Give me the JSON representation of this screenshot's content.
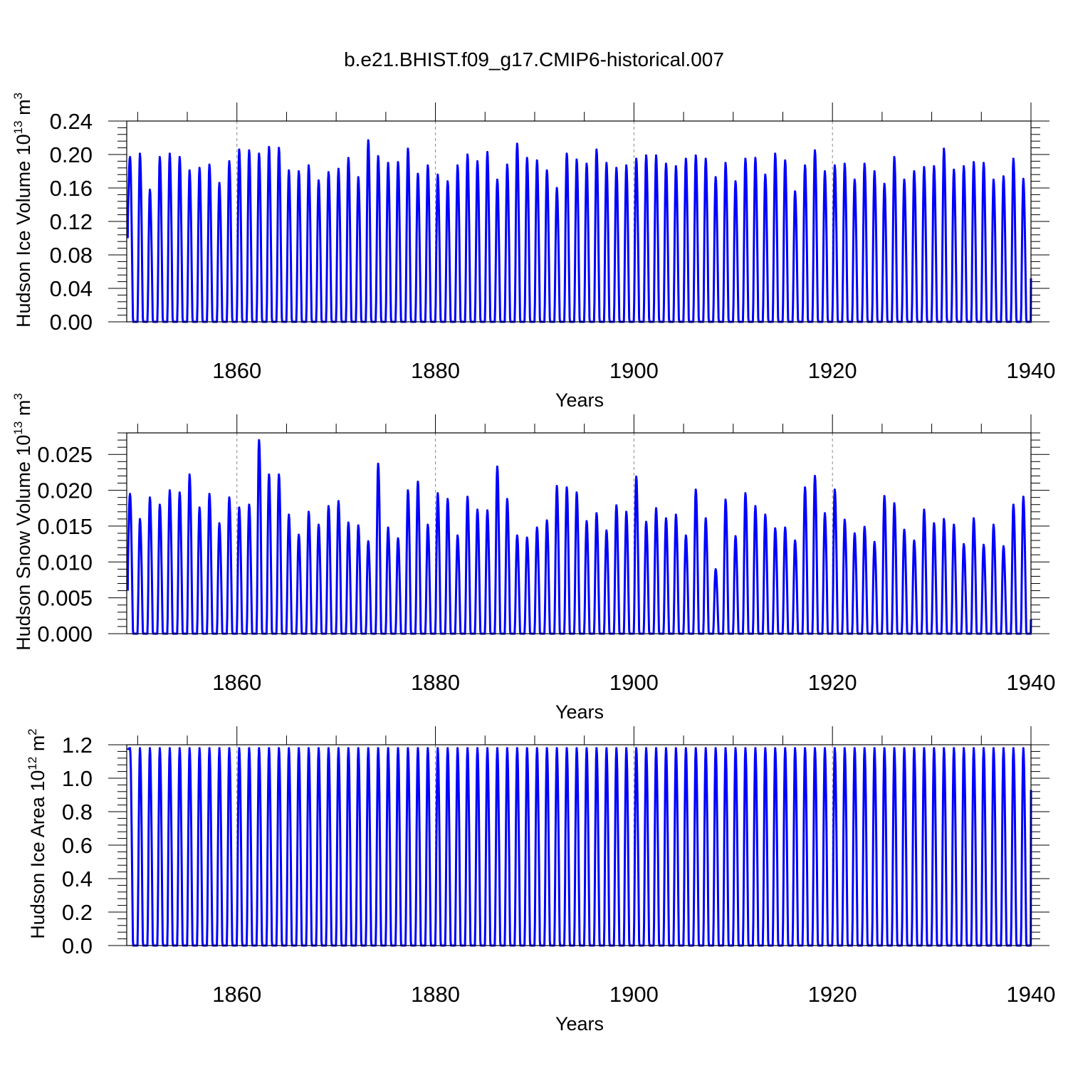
{
  "title": "b.e21.BHIST.f09_g17.CMIP6-historical.007",
  "colors": {
    "line": "#0000ff",
    "axes": "#000000",
    "grid": "#888888"
  },
  "chart_data": [
    {
      "type": "line",
      "ylabel": "Hudson Ice Volume 10",
      "ylabel_sup_exp": "13",
      "ylabel_unit": "m",
      "ylabel_unit_sup": "3",
      "xlabel": "Years",
      "xlim": [
        1848.9,
        1940.0
      ],
      "ylim": [
        0.0,
        0.24
      ],
      "yticks": [
        "0.00",
        "0.04",
        "0.08",
        "0.12",
        "0.16",
        "0.20",
        "0.24"
      ],
      "xticks": [
        "1860",
        "1880",
        "1900",
        "1920",
        "1940"
      ],
      "grid": "vertical dashed at major x ticks",
      "series": [
        {
          "start_year": 1849,
          "annual_max": [
            0.197,
            0.201,
            0.158,
            0.197,
            0.201,
            0.197,
            0.181,
            0.184,
            0.188,
            0.166,
            0.192,
            0.206,
            0.205,
            0.201,
            0.209,
            0.208,
            0.181,
            0.18,
            0.187,
            0.169,
            0.179,
            0.183,
            0.196,
            0.173,
            0.217,
            0.198,
            0.19,
            0.191,
            0.207,
            0.177,
            0.187,
            0.176,
            0.168,
            0.187,
            0.2,
            0.192,
            0.203,
            0.17,
            0.188,
            0.213,
            0.196,
            0.193,
            0.181,
            0.16,
            0.201,
            0.194,
            0.189,
            0.206,
            0.19,
            0.184,
            0.187,
            0.195,
            0.199,
            0.199,
            0.189,
            0.186,
            0.195,
            0.199,
            0.195,
            0.173,
            0.19,
            0.168,
            0.195,
            0.196,
            0.176,
            0.201,
            0.193,
            0.156,
            0.187,
            0.205,
            0.18,
            0.187,
            0.189,
            0.17,
            0.189,
            0.18,
            0.165,
            0.197,
            0.17,
            0.18,
            0.185,
            0.186,
            0.207,
            0.182,
            0.186,
            0.191,
            0.19,
            0.17,
            0.174,
            0.195,
            0.171
          ],
          "annual_min": [
            0.0,
            0.0,
            0.0,
            0.0,
            0.0,
            0.0,
            0.0,
            0.0,
            0.0,
            0.0,
            0.0,
            0.0,
            0.0,
            0.0,
            0.0,
            0.0,
            0.0,
            0.0,
            0.0,
            0.0,
            0.0,
            0.0,
            0.0,
            0.0,
            0.0,
            0.0,
            0.0,
            0.0,
            0.0,
            0.0,
            0.0,
            0.0,
            0.0,
            0.0,
            0.0,
            0.0,
            0.0,
            0.0,
            0.0,
            0.0,
            0.0,
            0.0,
            0.0,
            0.0,
            0.0,
            0.0,
            0.0,
            0.0,
            0.0,
            0.0,
            0.0,
            0.0,
            0.0,
            0.0,
            0.0,
            0.0,
            0.0,
            0.0,
            0.0,
            0.0,
            0.0,
            0.0,
            0.0,
            0.0,
            0.0,
            0.0,
            0.0,
            0.0,
            0.0,
            0.0,
            0.0,
            0.0,
            0.0,
            0.0,
            0.0,
            0.0,
            0.0,
            0.0,
            0.0,
            0.0,
            0.0,
            0.0,
            0.0,
            0.0,
            0.0,
            0.0,
            0.0,
            0.0,
            0.0,
            0.0,
            0.0
          ],
          "start_value": 0.1,
          "end_value": 0.052
        }
      ]
    },
    {
      "type": "line",
      "ylabel": "Hudson Snow Volume 10",
      "ylabel_sup_exp": "13",
      "ylabel_unit": "m",
      "ylabel_unit_sup": "3",
      "xlabel": "Years",
      "xlim": [
        1848.9,
        1940.0
      ],
      "ylim": [
        0.0,
        0.028
      ],
      "yticks": [
        "0.000",
        "0.005",
        "0.010",
        "0.015",
        "0.020",
        "0.025"
      ],
      "xticks": [
        "1860",
        "1880",
        "1900",
        "1920",
        "1940"
      ],
      "grid": "vertical dashed at major x ticks",
      "series": [
        {
          "start_year": 1849,
          "annual_max": [
            0.0195,
            0.016,
            0.019,
            0.018,
            0.02,
            0.0197,
            0.0222,
            0.0176,
            0.0195,
            0.0154,
            0.019,
            0.0176,
            0.018,
            0.027,
            0.0222,
            0.0222,
            0.0166,
            0.0138,
            0.017,
            0.0152,
            0.0178,
            0.0185,
            0.0155,
            0.0151,
            0.0129,
            0.0237,
            0.0148,
            0.0133,
            0.02,
            0.0212,
            0.0152,
            0.0196,
            0.0188,
            0.0137,
            0.0191,
            0.0173,
            0.0172,
            0.0233,
            0.0188,
            0.0137,
            0.0134,
            0.0148,
            0.0158,
            0.0206,
            0.0204,
            0.0197,
            0.0157,
            0.0168,
            0.0144,
            0.0179,
            0.017,
            0.0219,
            0.0156,
            0.0175,
            0.0161,
            0.0166,
            0.0137,
            0.0201,
            0.0161,
            0.009,
            0.0187,
            0.0136,
            0.0196,
            0.0178,
            0.0166,
            0.0147,
            0.0148,
            0.013,
            0.0204,
            0.022,
            0.0168,
            0.0201,
            0.0159,
            0.014,
            0.0149,
            0.0128,
            0.0192,
            0.0182,
            0.0145,
            0.013,
            0.0173,
            0.0154,
            0.016,
            0.0152,
            0.0125,
            0.0161,
            0.0124,
            0.0152,
            0.0122,
            0.018,
            0.0191
          ],
          "annual_min": [
            0.0,
            0.0,
            0.0,
            0.0,
            0.0,
            0.0,
            0.0,
            0.0,
            0.0,
            0.0,
            0.0,
            0.0,
            0.0,
            0.0,
            0.0,
            0.0,
            0.0,
            0.0,
            0.0,
            0.0,
            0.0,
            0.0,
            0.0,
            0.0,
            0.0,
            0.0,
            0.0,
            0.0,
            0.0,
            0.0,
            0.0,
            0.0,
            0.0,
            0.0,
            0.0,
            0.0,
            0.0,
            0.0,
            0.0,
            0.0,
            0.0,
            0.0,
            0.0,
            0.0,
            0.0,
            0.0,
            0.0,
            0.0,
            0.0,
            0.0,
            0.0,
            0.0,
            0.0,
            0.0,
            0.0,
            0.0,
            0.0,
            0.0,
            0.0,
            0.0,
            0.0,
            0.0,
            0.0,
            0.0,
            0.0,
            0.0,
            0.0,
            0.0,
            0.0,
            0.0,
            0.0,
            0.0,
            0.0,
            0.0,
            0.0,
            0.0,
            0.0,
            0.0,
            0.0,
            0.0,
            0.0,
            0.0,
            0.0,
            0.0,
            0.0,
            0.0,
            0.0,
            0.0,
            0.0,
            0.0,
            0.0
          ],
          "start_value": 0.006,
          "end_value": 0.002
        }
      ]
    },
    {
      "type": "line",
      "ylabel": "Hudson Ice Area 10",
      "ylabel_sup_exp": "12",
      "ylabel_unit": "m",
      "ylabel_unit_sup": "2",
      "xlabel": "Years",
      "xlim": [
        1848.9,
        1940.0
      ],
      "ylim": [
        0.0,
        1.2
      ],
      "yticks": [
        "0.0",
        "0.2",
        "0.4",
        "0.6",
        "0.8",
        "1.0",
        "1.2"
      ],
      "xticks": [
        "1860",
        "1880",
        "1900",
        "1920",
        "1940"
      ],
      "grid": "vertical dashed at major x ticks",
      "series": [
        {
          "start_year": 1849,
          "annual_max": [
            1.18,
            1.18,
            1.18,
            1.18,
            1.18,
            1.18,
            1.18,
            1.18,
            1.18,
            1.18,
            1.18,
            1.18,
            1.18,
            1.18,
            1.18,
            1.18,
            1.18,
            1.18,
            1.18,
            1.18,
            1.18,
            1.18,
            1.18,
            1.18,
            1.18,
            1.18,
            1.18,
            1.18,
            1.18,
            1.18,
            1.18,
            1.18,
            1.18,
            1.18,
            1.18,
            1.18,
            1.18,
            1.18,
            1.18,
            1.18,
            1.18,
            1.18,
            1.18,
            1.18,
            1.18,
            1.18,
            1.18,
            1.18,
            1.18,
            1.18,
            1.18,
            1.18,
            1.18,
            1.18,
            1.18,
            1.18,
            1.18,
            1.18,
            1.18,
            1.18,
            1.18,
            1.18,
            1.18,
            1.18,
            1.18,
            1.18,
            1.18,
            1.18,
            1.18,
            1.18,
            1.18,
            1.18,
            1.18,
            1.18,
            1.18,
            1.18,
            1.18,
            1.18,
            1.18,
            1.18,
            1.18,
            1.18,
            1.18,
            1.18,
            1.18,
            1.18,
            1.18,
            1.18,
            1.18,
            1.18,
            1.18
          ],
          "annual_min": [
            0.0,
            0.0,
            0.0,
            0.0,
            0.0,
            0.0,
            0.0,
            0.0,
            0.0,
            0.0,
            0.0,
            0.0,
            0.0,
            0.0,
            0.0,
            0.0,
            0.0,
            0.0,
            0.0,
            0.0,
            0.0,
            0.0,
            0.0,
            0.0,
            0.0,
            0.0,
            0.0,
            0.0,
            0.0,
            0.0,
            0.0,
            0.0,
            0.0,
            0.0,
            0.0,
            0.0,
            0.0,
            0.0,
            0.0,
            0.0,
            0.0,
            0.0,
            0.0,
            0.0,
            0.0,
            0.0,
            0.0,
            0.0,
            0.0,
            0.0,
            0.0,
            0.0,
            0.0,
            0.0,
            0.0,
            0.0,
            0.0,
            0.0,
            0.0,
            0.0,
            0.0,
            0.0,
            0.0,
            0.0,
            0.0,
            0.0,
            0.0,
            0.0,
            0.0,
            0.0,
            0.0,
            0.0,
            0.0,
            0.0,
            0.0,
            0.0,
            0.0,
            0.0,
            0.0,
            0.0,
            0.0,
            0.0,
            0.0,
            0.0,
            0.0,
            0.0,
            0.0,
            0.0,
            0.0,
            0.0,
            0.0
          ],
          "start_value": 1.17,
          "end_value": 0.93
        }
      ]
    }
  ]
}
